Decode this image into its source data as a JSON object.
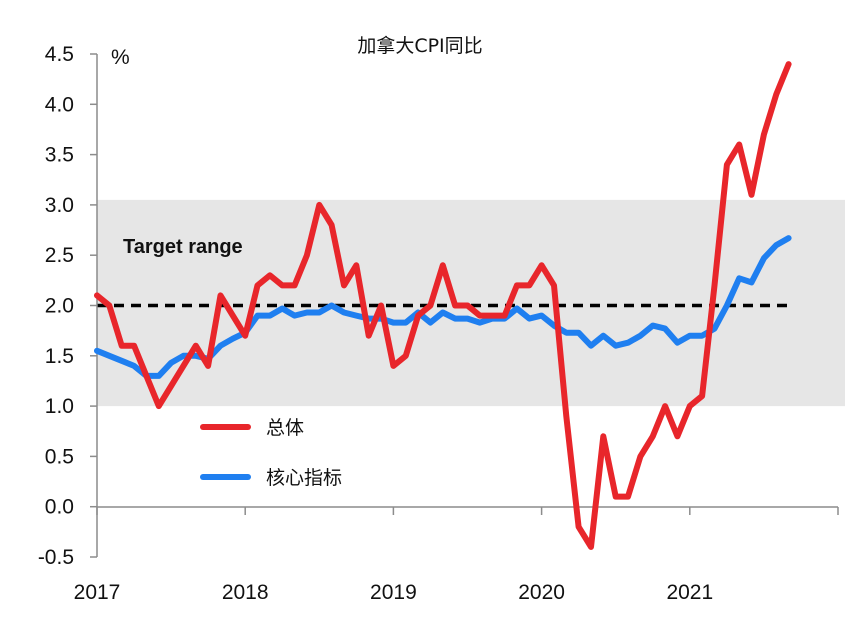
{
  "chart_data": {
    "type": "line",
    "title": "加拿大CPI同比",
    "ylabel": "%",
    "ylim": [
      -0.5,
      4.5
    ],
    "y_ticks": [
      "4.5",
      "4.0",
      "3.5",
      "3.0",
      "2.5",
      "2.0",
      "1.5",
      "1.0",
      "0.5",
      "0.0",
      "-0.5"
    ],
    "x_ticks": [
      "2017",
      "2018",
      "2019",
      "2020",
      "2021"
    ],
    "target_band": {
      "label": "Target range",
      "low": 1.0,
      "high": 3.0,
      "color": "#e6e6e6"
    },
    "target_line": {
      "value": 2.0,
      "style": "dashed",
      "color": "#000000"
    },
    "x_start": "2017-01",
    "series": [
      {
        "name": "总体",
        "color": "#e8262b",
        "values": [
          2.1,
          2.0,
          1.6,
          1.6,
          1.3,
          1.0,
          1.2,
          1.4,
          1.6,
          1.4,
          2.1,
          1.9,
          1.7,
          2.2,
          2.3,
          2.2,
          2.2,
          2.5,
          3.0,
          2.8,
          2.2,
          2.4,
          1.7,
          2.0,
          1.4,
          1.5,
          1.9,
          2.0,
          2.4,
          2.0,
          2.0,
          1.9,
          1.9,
          1.9,
          2.2,
          2.2,
          2.4,
          2.2,
          0.9,
          -0.2,
          -0.4,
          0.7,
          0.1,
          0.1,
          0.5,
          0.7,
          1.0,
          0.7,
          1.0,
          1.1,
          2.2,
          3.4,
          3.6,
          3.1,
          3.7,
          4.1,
          4.4
        ]
      },
      {
        "name": "核心指标",
        "color": "#1f7ff0",
        "values": [
          1.55,
          1.5,
          1.45,
          1.4,
          1.3,
          1.3,
          1.43,
          1.5,
          1.5,
          1.47,
          1.6,
          1.67,
          1.73,
          1.9,
          1.9,
          1.97,
          1.9,
          1.93,
          1.93,
          2.0,
          1.93,
          1.9,
          1.87,
          1.87,
          1.83,
          1.83,
          1.93,
          1.83,
          1.93,
          1.87,
          1.87,
          1.83,
          1.87,
          1.87,
          1.97,
          1.87,
          1.9,
          1.8,
          1.73,
          1.73,
          1.6,
          1.7,
          1.6,
          1.63,
          1.7,
          1.8,
          1.77,
          1.63,
          1.7,
          1.7,
          1.77,
          2.0,
          2.27,
          2.23,
          2.47,
          2.6,
          2.67
        ]
      }
    ],
    "legend": {
      "position": "bottom-left inside plot",
      "entries": [
        "总体",
        "核心指标"
      ]
    },
    "grid": false
  }
}
